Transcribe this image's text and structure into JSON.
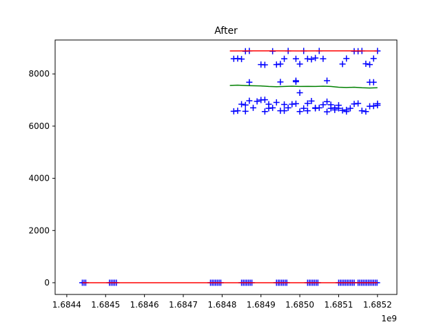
{
  "chart_data": {
    "type": "scatter",
    "title": "After",
    "xlabel": "",
    "ylabel": "",
    "x_offset_label": "1e9",
    "xlim": [
      1.68437,
      1.68525
    ],
    "ylim": [
      -450,
      9300
    ],
    "x_ticks": [
      {
        "value": 1.6844,
        "label": "1.6844"
      },
      {
        "value": 1.6845,
        "label": "1.6845"
      },
      {
        "value": 1.6846,
        "label": "1.6846"
      },
      {
        "value": 1.6847,
        "label": "1.6847"
      },
      {
        "value": 1.6848,
        "label": "1.6848"
      },
      {
        "value": 1.6849,
        "label": "1.6849"
      },
      {
        "value": 1.685,
        "label": "1.6850"
      },
      {
        "value": 1.6851,
        "label": "1.6851"
      },
      {
        "value": 1.6852,
        "label": "1.6852"
      }
    ],
    "y_ticks": [
      {
        "value": 0,
        "label": "0"
      },
      {
        "value": 2000,
        "label": "2000"
      },
      {
        "value": 4000,
        "label": "4000"
      },
      {
        "value": 6000,
        "label": "6000"
      },
      {
        "value": 8000,
        "label": "8000"
      }
    ],
    "grid": false,
    "legend": "none",
    "series": [
      {
        "style": "markers",
        "marker": "+",
        "color": "#0000ff",
        "clusters": [
          {
            "x": [
              1.68444,
              1.68445
            ],
            "y": 0
          },
          {
            "x": [
              1.68451,
              1.68453
            ],
            "y": 0
          },
          {
            "x": [
              1.68477,
              1.6848
            ],
            "y": 0
          },
          {
            "x": [
              1.68485,
              1.68488
            ],
            "y": 0
          },
          {
            "x": [
              1.68494,
              1.68497
            ],
            "y": 0
          },
          {
            "x": [
              1.68502,
              1.68505
            ],
            "y": 0
          },
          {
            "x": [
              1.6851,
              1.68514
            ],
            "y": 0
          },
          {
            "x": [
              1.68515,
              1.6852
            ],
            "y": 0
          }
        ],
        "points": [
          {
            "x": 1.68483,
            "y": 8580
          },
          {
            "x": 1.68484,
            "y": 8590
          },
          {
            "x": 1.68485,
            "y": 8570
          },
          {
            "x": 1.68486,
            "y": 8870
          },
          {
            "x": 1.68487,
            "y": 8880
          },
          {
            "x": 1.6849,
            "y": 8360
          },
          {
            "x": 1.68491,
            "y": 8350
          },
          {
            "x": 1.68493,
            "y": 8870
          },
          {
            "x": 1.68494,
            "y": 8360
          },
          {
            "x": 1.68495,
            "y": 8380
          },
          {
            "x": 1.68496,
            "y": 8580
          },
          {
            "x": 1.68497,
            "y": 8880
          },
          {
            "x": 1.68499,
            "y": 8580
          },
          {
            "x": 1.685,
            "y": 8380
          },
          {
            "x": 1.68501,
            "y": 8880
          },
          {
            "x": 1.68502,
            "y": 8580
          },
          {
            "x": 1.68503,
            "y": 8560
          },
          {
            "x": 1.68504,
            "y": 8610
          },
          {
            "x": 1.68505,
            "y": 8880
          },
          {
            "x": 1.68506,
            "y": 8580
          },
          {
            "x": 1.68511,
            "y": 8380
          },
          {
            "x": 1.68512,
            "y": 8590
          },
          {
            "x": 1.68514,
            "y": 8870
          },
          {
            "x": 1.68515,
            "y": 8870
          },
          {
            "x": 1.68516,
            "y": 8880
          },
          {
            "x": 1.68517,
            "y": 8390
          },
          {
            "x": 1.68518,
            "y": 8360
          },
          {
            "x": 1.68519,
            "y": 8590
          },
          {
            "x": 1.6852,
            "y": 8880
          },
          {
            "x": 1.68487,
            "y": 7680
          },
          {
            "x": 1.68495,
            "y": 7690
          },
          {
            "x": 1.68499,
            "y": 7740
          },
          {
            "x": 1.68499,
            "y": 7700
          },
          {
            "x": 1.68507,
            "y": 7740
          },
          {
            "x": 1.68518,
            "y": 7680
          },
          {
            "x": 1.68519,
            "y": 7680
          },
          {
            "x": 1.685,
            "y": 7280
          },
          {
            "x": 1.68483,
            "y": 6570
          },
          {
            "x": 1.68484,
            "y": 6590
          },
          {
            "x": 1.68485,
            "y": 6840
          },
          {
            "x": 1.68486,
            "y": 6570
          },
          {
            "x": 1.68486,
            "y": 6810
          },
          {
            "x": 1.68487,
            "y": 6970
          },
          {
            "x": 1.68488,
            "y": 6700
          },
          {
            "x": 1.68489,
            "y": 6950
          },
          {
            "x": 1.6849,
            "y": 7000
          },
          {
            "x": 1.68491,
            "y": 6560
          },
          {
            "x": 1.68491,
            "y": 7010
          },
          {
            "x": 1.68492,
            "y": 6840
          },
          {
            "x": 1.68492,
            "y": 6680
          },
          {
            "x": 1.68493,
            "y": 6700
          },
          {
            "x": 1.68494,
            "y": 6910
          },
          {
            "x": 1.68495,
            "y": 6590
          },
          {
            "x": 1.68496,
            "y": 6830
          },
          {
            "x": 1.68496,
            "y": 6590
          },
          {
            "x": 1.68497,
            "y": 6700
          },
          {
            "x": 1.68498,
            "y": 6840
          },
          {
            "x": 1.68499,
            "y": 6860
          },
          {
            "x": 1.685,
            "y": 6560
          },
          {
            "x": 1.68501,
            "y": 6680
          },
          {
            "x": 1.68502,
            "y": 6870
          },
          {
            "x": 1.68502,
            "y": 6590
          },
          {
            "x": 1.68503,
            "y": 6960
          },
          {
            "x": 1.68504,
            "y": 6700
          },
          {
            "x": 1.68504,
            "y": 6680
          },
          {
            "x": 1.68505,
            "y": 6700
          },
          {
            "x": 1.68506,
            "y": 6820
          },
          {
            "x": 1.68507,
            "y": 6550
          },
          {
            "x": 1.68507,
            "y": 6940
          },
          {
            "x": 1.68508,
            "y": 6820
          },
          {
            "x": 1.68508,
            "y": 6680
          },
          {
            "x": 1.68509,
            "y": 6620
          },
          {
            "x": 1.68509,
            "y": 6700
          },
          {
            "x": 1.6851,
            "y": 6800
          },
          {
            "x": 1.6851,
            "y": 6680
          },
          {
            "x": 1.68511,
            "y": 6600
          },
          {
            "x": 1.68512,
            "y": 6620
          },
          {
            "x": 1.68512,
            "y": 6560
          },
          {
            "x": 1.68513,
            "y": 6680
          },
          {
            "x": 1.68514,
            "y": 6850
          },
          {
            "x": 1.68515,
            "y": 6870
          },
          {
            "x": 1.68516,
            "y": 6590
          },
          {
            "x": 1.68517,
            "y": 6560
          },
          {
            "x": 1.68518,
            "y": 6760
          },
          {
            "x": 1.68519,
            "y": 6770
          },
          {
            "x": 1.6852,
            "y": 6800
          },
          {
            "x": 1.6852,
            "y": 6860
          }
        ]
      },
      {
        "style": "line",
        "color": "#ff0000",
        "x": [
          1.68482,
          1.68488,
          1.68494,
          1.685,
          1.68506,
          1.68512,
          1.68518,
          1.6852
        ],
        "y": [
          8880,
          8885,
          8885,
          8880,
          8885,
          8885,
          8880,
          8880
        ]
      },
      {
        "style": "line",
        "color": "#008000",
        "x": [
          1.68482,
          1.68484,
          1.68487,
          1.6849,
          1.68492,
          1.68494,
          1.68496,
          1.68498,
          1.685,
          1.68502,
          1.68504,
          1.68506,
          1.68508,
          1.6851,
          1.68512,
          1.68514,
          1.68516,
          1.68518,
          1.6852
        ],
        "y": [
          7560,
          7570,
          7550,
          7540,
          7520,
          7510,
          7520,
          7530,
          7520,
          7525,
          7520,
          7530,
          7520,
          7490,
          7480,
          7490,
          7470,
          7460,
          7470
        ]
      },
      {
        "style": "line",
        "color": "#ff0000",
        "x": [
          1.68444,
          1.6852
        ],
        "y": [
          0,
          0
        ]
      }
    ]
  }
}
